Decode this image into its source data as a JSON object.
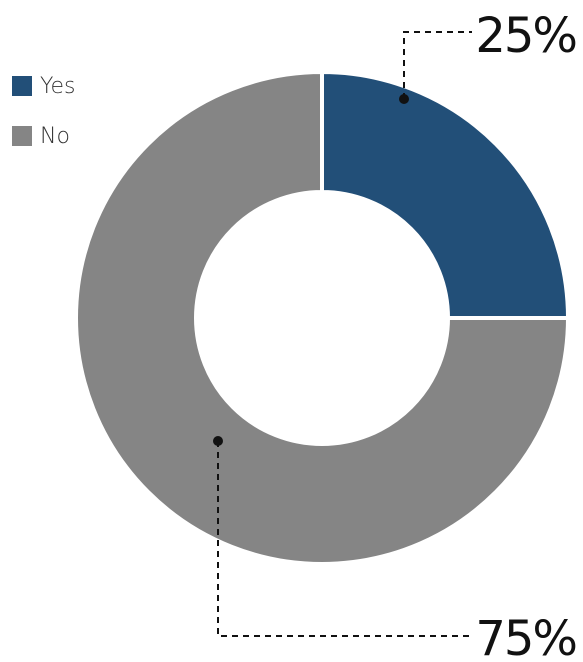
{
  "chart_data": {
    "type": "pie",
    "variant": "donut",
    "categories": [
      "Yes",
      "No"
    ],
    "values": [
      25,
      75
    ],
    "labels": [
      "25%",
      "75%"
    ],
    "colors": [
      "#224f78",
      "#858585"
    ],
    "legend": {
      "position": "top-left",
      "entries": [
        "Yes",
        "No"
      ]
    },
    "title": ""
  }
}
